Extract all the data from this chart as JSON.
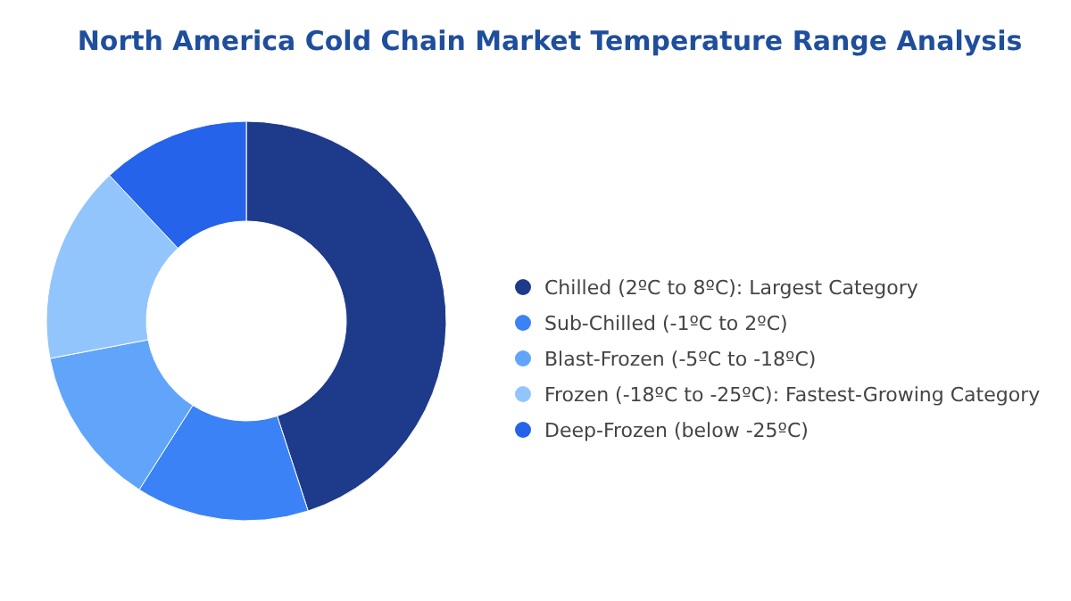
{
  "chart_data": {
    "type": "donut",
    "title": "North America Cold Chain Market Temperature Range Analysis",
    "categories": [
      "Chilled (2ºC to 8ºC): Largest Category",
      "Sub-Chilled (-1ºC to 2ºC)",
      "Blast-Frozen (-5ºC to -18ºC)",
      "Frozen (-18ºC to -25ºC): Fastest-Growing Category",
      "Deep-Frozen (below -25ºC)"
    ],
    "values": [
      45,
      14,
      13,
      16,
      12
    ],
    "colors": [
      "#1e3a8a",
      "#3b82f6",
      "#60a5fa",
      "#93c5fd",
      "#2563eb"
    ],
    "legend": "right"
  }
}
